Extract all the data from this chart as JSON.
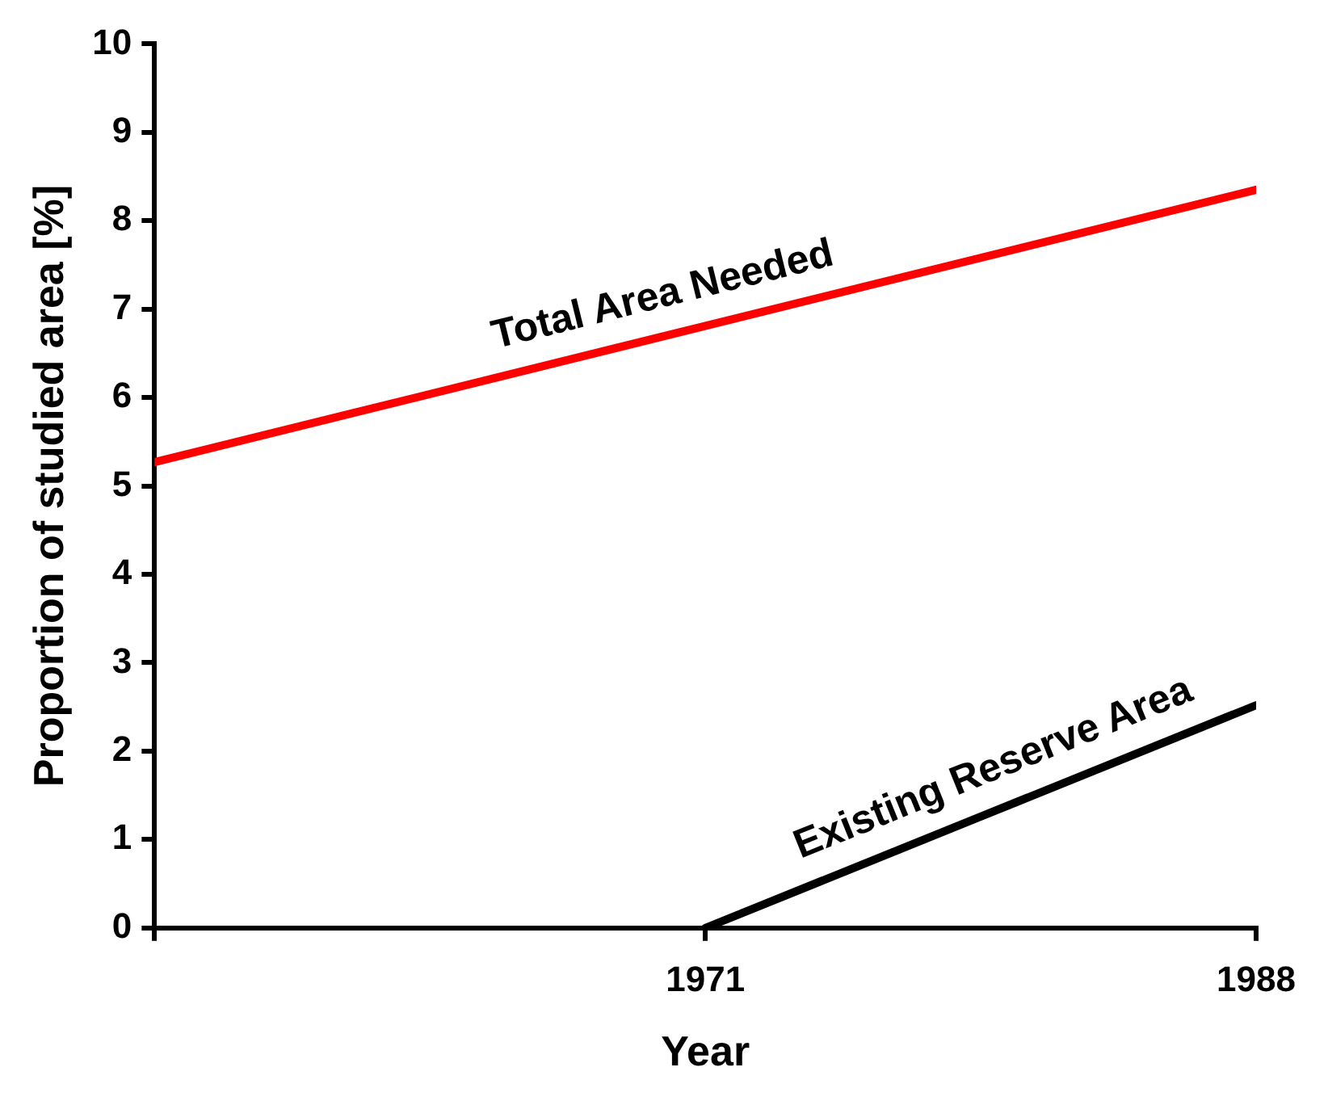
{
  "chart_data": {
    "type": "line",
    "xlabel": "Year",
    "ylabel": "Proportion of studied area [%]",
    "xlim": [
      1954,
      1988
    ],
    "xticks": [
      {
        "value": 1954,
        "label": null
      },
      1971,
      1988
    ],
    "ylim": [
      0,
      10
    ],
    "yticks": [
      0,
      1,
      2,
      3,
      4,
      5,
      6,
      7,
      8,
      9,
      10
    ],
    "series": [
      {
        "name": "Total Area Needed",
        "color": "#ff0000",
        "x": [
          1954,
          1988
        ],
        "values": [
          5.27,
          8.35
        ]
      },
      {
        "name": "Existing Reserve Area",
        "color": "#000000",
        "x": [
          1971,
          1988
        ],
        "values": [
          0,
          2.52
        ]
      }
    ],
    "grid": false,
    "legend": false,
    "marker": "none",
    "line_style": "solid"
  }
}
